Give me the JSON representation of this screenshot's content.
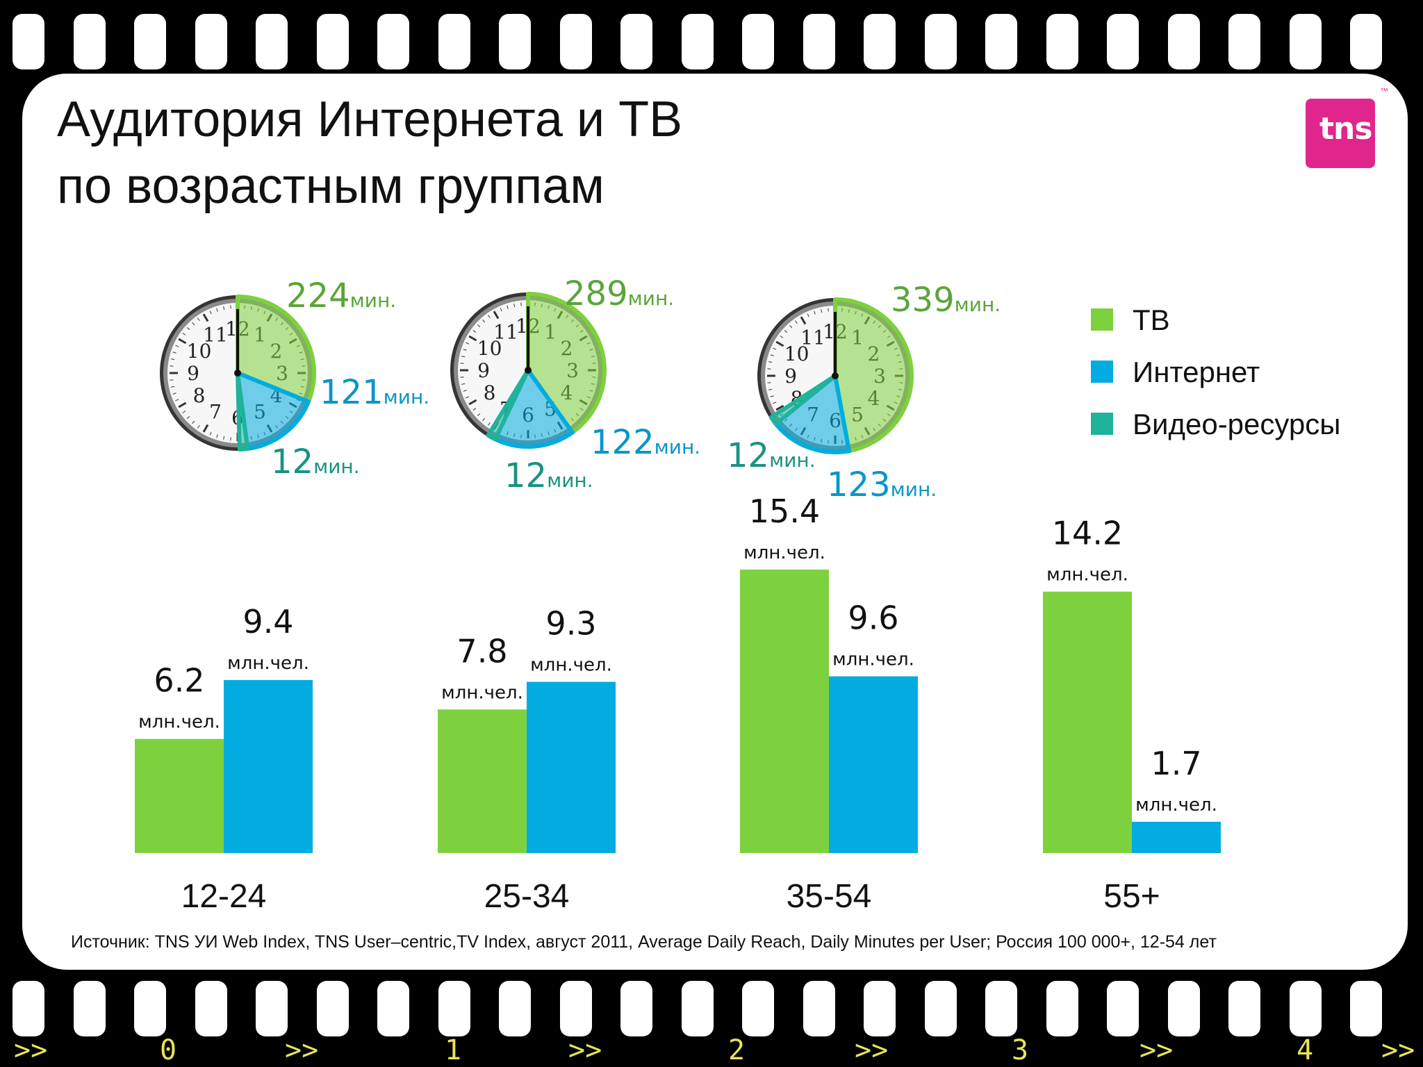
{
  "title_lines": [
    "Аудитория Интернета и ТВ",
    "по возрастным группам"
  ],
  "logo_text": "tns",
  "logo_mark": "™",
  "legend": [
    {
      "label": "ТВ",
      "color": "#7ed13e"
    },
    {
      "label": "Интернет",
      "color": "#02ace0"
    },
    {
      "label": "Видео-ресурсы",
      "color": "#1fb39b"
    }
  ],
  "source": "Источник: TNS УИ Web Index, TNS User–centric,TV Index, август 2011, Average Daily Reach, Daily Minutes per User; Россия 100 000+, 12-54 лет",
  "frame_numbers": [
    ">>",
    "0",
    ">>",
    "1",
    ">>",
    "2",
    ">>",
    "3",
    ">>",
    "4",
    ">>"
  ],
  "chart_data": {
    "type": "bar",
    "categories": [
      "12-24",
      "25-34",
      "35-54",
      "55+"
    ],
    "unit_label": "млн.чел.",
    "series": [
      {
        "name": "ТВ",
        "values": [
          6.2,
          7.8,
          15.4,
          14.2
        ],
        "color": "#7ed13e"
      },
      {
        "name": "Интернет",
        "values": [
          9.4,
          9.3,
          9.6,
          1.7
        ],
        "color": "#02ace0"
      }
    ],
    "ylim": [
      0,
      16
    ],
    "daily_minutes": {
      "unit": "мин.",
      "groups": [
        "12-24",
        "25-34",
        "35-54"
      ],
      "series": [
        {
          "name": "ТВ",
          "values": [
            224,
            289,
            339
          ],
          "color": "#7ed13e",
          "label_color": "#5aa53a"
        },
        {
          "name": "Интернет",
          "values": [
            121,
            122,
            123
          ],
          "color": "#02ace0",
          "label_color": "#0896c8"
        },
        {
          "name": "Видео-ресурсы",
          "values": [
            12,
            12,
            12
          ],
          "color": "#1fb39b",
          "label_color": "#19937f"
        }
      ]
    }
  }
}
